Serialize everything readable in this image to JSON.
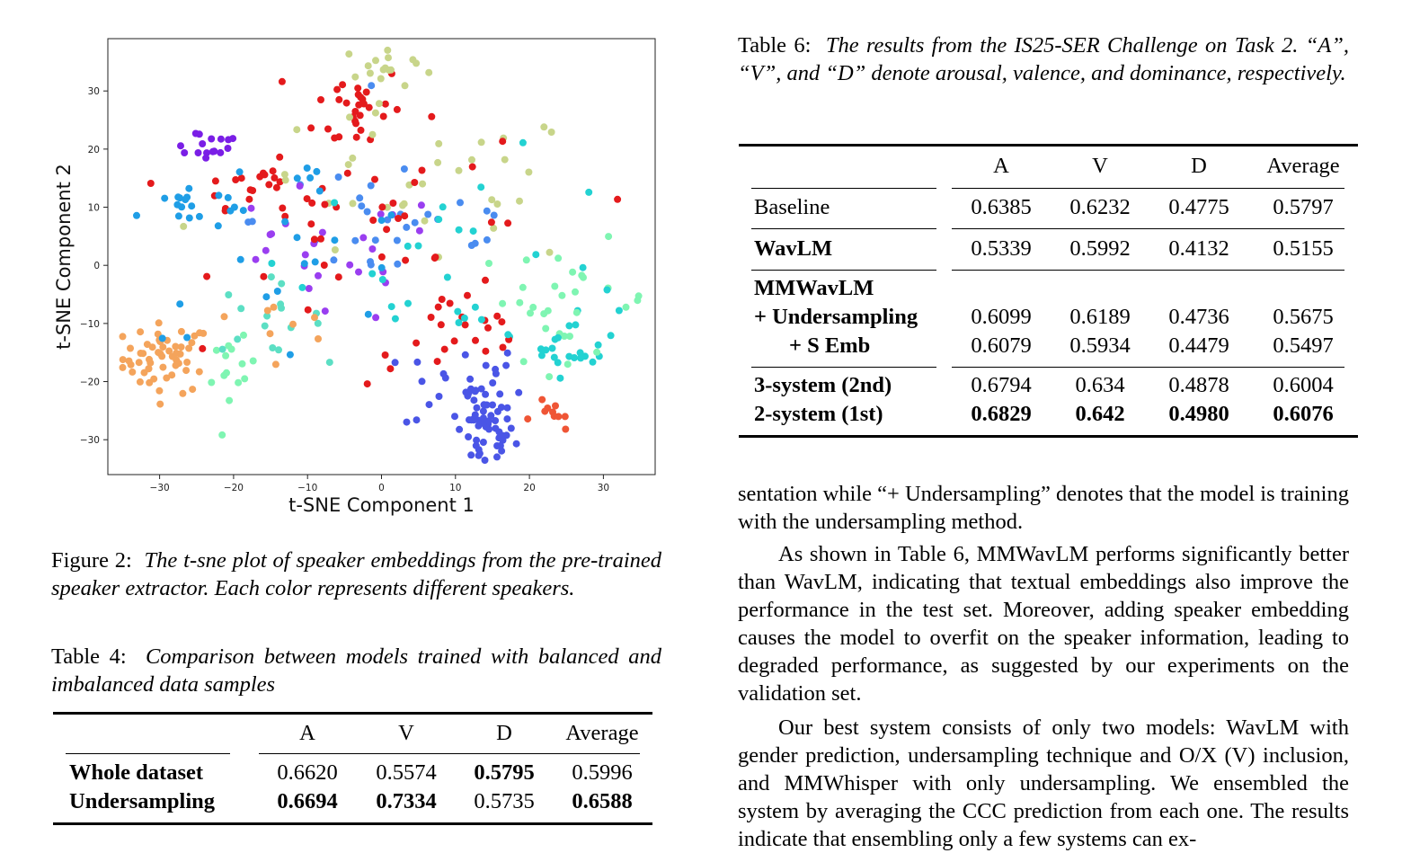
{
  "figure": {
    "caption_label": "Figure 2:",
    "caption_text": "The t-sne plot of speaker embeddings from the pre-trained speaker extractor. Each color represents different speakers."
  },
  "chart_data": {
    "type": "scatter",
    "title": "",
    "xlabel": "t-SNE Component 1",
    "ylabel": "t-SNE Component 2",
    "xlim": [
      -37,
      37
    ],
    "ylim": [
      -36,
      39
    ],
    "xticks": [
      -30,
      -20,
      -10,
      0,
      10,
      20,
      30
    ],
    "yticks": [
      -30,
      -20,
      -10,
      0,
      10,
      20,
      30
    ],
    "xtick_labels": [
      "−30",
      "−20",
      "−10",
      "0",
      "10",
      "20",
      "30"
    ],
    "ytick_labels": [
      "−30",
      "−20",
      "−10",
      "0",
      "10",
      "20",
      "30"
    ],
    "grid": false,
    "legend": "none",
    "colormap": "rainbow",
    "clusters": [
      {
        "color": "#f4a45c",
        "center": [
          -29,
          -16
        ],
        "spread": [
          3,
          3
        ],
        "n": 55
      },
      {
        "color": "#4a55e6",
        "center": [
          14,
          -29
        ],
        "spread": [
          2,
          3
        ],
        "n": 45
      },
      {
        "color": "#4a55e6",
        "center": [
          11,
          -21
        ],
        "spread": [
          4,
          4
        ],
        "n": 30
      },
      {
        "color": "#7a1ee6",
        "center": [
          -24,
          21
        ],
        "spread": [
          3,
          1.5
        ],
        "n": 16
      },
      {
        "color": "#e41a1c",
        "center": [
          -3,
          27
        ],
        "spread": [
          3,
          4
        ],
        "n": 30
      },
      {
        "color": "#e41a1c",
        "center": [
          -17,
          14
        ],
        "spread": [
          4,
          2
        ],
        "n": 22
      },
      {
        "color": "#c8d58a",
        "center": [
          1,
          34
        ],
        "spread": [
          3,
          2
        ],
        "n": 16
      },
      {
        "color": "#1f9ee6",
        "center": [
          -27,
          10
        ],
        "spread": [
          3,
          2
        ],
        "n": 16
      },
      {
        "color": "#23d2d2",
        "center": [
          26,
          -13
        ],
        "spread": [
          3,
          3
        ],
        "n": 22
      },
      {
        "color": "#7ff5b2",
        "center": [
          -20,
          -19
        ],
        "spread": [
          1.5,
          3
        ],
        "n": 14
      },
      {
        "color": "#7ff5b2",
        "center": [
          25,
          -6
        ],
        "spread": [
          6,
          5
        ],
        "n": 30
      },
      {
        "color": "#ef5535",
        "center": [
          23,
          -26
        ],
        "spread": [
          2,
          1.5
        ],
        "n": 10
      },
      {
        "color": "#5cdfc4",
        "center": [
          -16,
          -9
        ],
        "spread": [
          4,
          3
        ],
        "n": 16
      },
      {
        "color": "#e41a1c",
        "center": [
          10,
          -13
        ],
        "spread": [
          6,
          4
        ],
        "n": 22
      },
      {
        "color": "#4a8cf0",
        "center": [
          3,
          8
        ],
        "spread": [
          10,
          7
        ],
        "n": 30
      },
      {
        "color": "#9a3ef0",
        "center": [
          -9,
          1
        ],
        "spread": [
          9,
          6
        ],
        "n": 25
      },
      {
        "color": "#c8d58a",
        "center": [
          5,
          13
        ],
        "spread": [
          12,
          7
        ],
        "n": 35
      },
      {
        "color": "#e41a1c",
        "center": [
          3,
          6
        ],
        "spread": [
          12,
          8
        ],
        "n": 35
      },
      {
        "color": "#23d2d2",
        "center": [
          12,
          2
        ],
        "spread": [
          12,
          8
        ],
        "n": 28
      },
      {
        "color": "#1f9ee6",
        "center": [
          -13,
          4
        ],
        "spread": [
          10,
          8
        ],
        "n": 25
      },
      {
        "color": "#f4a45c",
        "center": [
          -12,
          -9
        ],
        "spread": [
          4,
          2
        ],
        "n": 8
      }
    ]
  },
  "table4": {
    "caption_label": "Table 4:",
    "caption_text": "Comparison between models trained with balanced and imbalanced data samples",
    "headers": [
      "",
      "A",
      "V",
      "D",
      "Average"
    ],
    "rows": [
      {
        "label": "Whole dataset",
        "values": [
          "0.6620",
          "0.5574",
          "0.5795",
          "0.5996"
        ]
      },
      {
        "label": "Undersampling",
        "values": [
          "0.6694",
          "0.7334",
          "0.5735",
          "0.6588"
        ]
      }
    ]
  },
  "table6": {
    "caption_label": "Table 6:",
    "caption_text": "The results from the IS25-SER Challenge on Task 2. “A”, “V”, and “D” denote arousal, valence, and dominance, respectively.",
    "headers": [
      "",
      "A",
      "V",
      "D",
      "Average"
    ],
    "rows": [
      {
        "label": "Baseline",
        "values": [
          "0.6385",
          "0.6232",
          "0.4775",
          "0.5797"
        ]
      },
      {
        "label": "WavLM",
        "values": [
          "0.5339",
          "0.5992",
          "0.4132",
          "0.5155"
        ]
      },
      {
        "label": "MMWavLM",
        "values": [
          "",
          "",
          "",
          ""
        ]
      },
      {
        "label": "+ Undersampling",
        "values": [
          "0.6099",
          "0.6189",
          "0.4736",
          "0.5675"
        ]
      },
      {
        "label": "+ S Emb",
        "values": [
          "0.6079",
          "0.5934",
          "0.4479",
          "0.5497"
        ]
      },
      {
        "label": "3-system (2nd)",
        "values": [
          "0.6794",
          "0.634",
          "0.4878",
          "0.6004"
        ]
      },
      {
        "label": "2-system (1st)",
        "values": [
          "0.6829",
          "0.642",
          "0.4980",
          "0.6076"
        ]
      }
    ]
  },
  "body": {
    "para1": "sentation while “+ Undersampling” denotes that the model is training with the undersampling method.",
    "para2": "As shown in Table 6, MMWavLM performs significantly better than WavLM, indicating that textual embeddings also improve the performance in the test set. Moreover, adding speaker embedding causes the model to overfit on the speaker information, leading to degraded performance, as suggested by our experiments on the validation set.",
    "para3": "Our best system consists of only two models: WavLM with gender prediction, undersampling technique and O/X (V) inclusion, and MMWhisper with only undersampling. We ensembled the system by averaging the CCC prediction from each one. The results indicate that ensembling only a few systems can ex-"
  }
}
